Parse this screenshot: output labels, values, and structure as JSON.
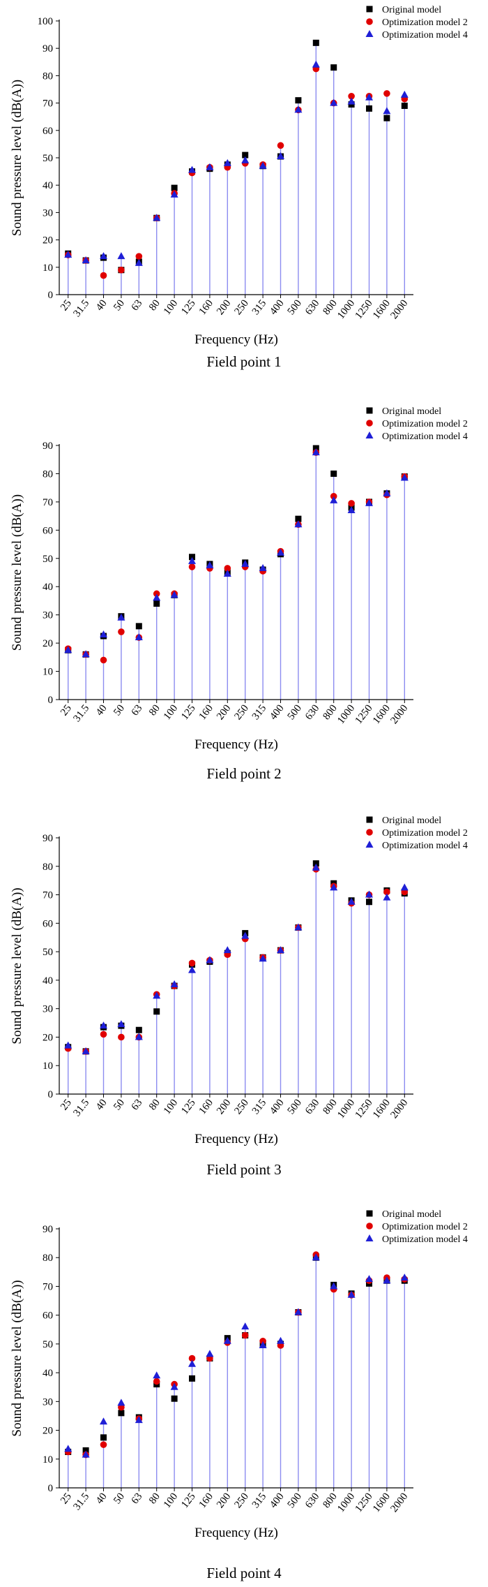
{
  "legend_labels": [
    "Original model",
    "Optimization model 2",
    "Optimization model 4"
  ],
  "colors": {
    "series1": "#000000",
    "series2": "#e00000",
    "series3": "#1f1fd6",
    "stem": "#8c8cf0"
  },
  "chart_data": [
    {
      "type": "scatter",
      "title": "Field point 1",
      "xlabel": "Frequency (Hz)",
      "ylabel": "Sound pressure level (dB(A))",
      "categories": [
        "25",
        "31.5",
        "40",
        "50",
        "63",
        "80",
        "100",
        "125",
        "160",
        "200",
        "250",
        "315",
        "400",
        "500",
        "630",
        "800",
        "1000",
        "1250",
        "1600",
        "2000"
      ],
      "ylim": [
        0,
        100
      ],
      "yticks": [
        0,
        10,
        20,
        30,
        40,
        50,
        60,
        70,
        80,
        90,
        100
      ],
      "series": [
        {
          "name": "Original model",
          "marker": "square",
          "values": [
            15,
            12.5,
            13.5,
            9,
            12,
            28,
            39,
            45,
            46,
            47.5,
            51,
            47,
            50.5,
            71,
            92,
            83,
            69.5,
            68,
            64.5,
            69
          ]
        },
        {
          "name": "Optimization model 2",
          "marker": "circle",
          "values": [
            14.5,
            12.5,
            7,
            9,
            14,
            28,
            37,
            44.5,
            46.5,
            46.5,
            48,
            47.5,
            54.5,
            67.5,
            82.5,
            70,
            72.5,
            72.5,
            73.5,
            71.5
          ]
        },
        {
          "name": "Optimization model 4",
          "marker": "triangle",
          "values": [
            14.5,
            12.5,
            14,
            14,
            11.5,
            28,
            36.5,
            45.5,
            46.5,
            48,
            49,
            47,
            50.5,
            67.5,
            84,
            70,
            70.5,
            72,
            67,
            73
          ]
        }
      ]
    },
    {
      "type": "scatter",
      "title": "Field point 2",
      "xlabel": "Frequency (Hz)",
      "ylabel": "Sound pressure level (dB(A))",
      "categories": [
        "25",
        "31.5",
        "40",
        "50",
        "63",
        "80",
        "100",
        "125",
        "160",
        "200",
        "250",
        "315",
        "400",
        "500",
        "630",
        "800",
        "1000",
        "1250",
        "1600",
        "2000"
      ],
      "ylim": [
        0,
        90
      ],
      "yticks": [
        0,
        10,
        20,
        30,
        40,
        50,
        60,
        70,
        80,
        90
      ],
      "series": [
        {
          "name": "Original model",
          "marker": "square",
          "values": [
            17.5,
            16,
            22.5,
            29.5,
            26,
            34,
            37,
            50.5,
            48,
            45,
            48.5,
            46,
            51.5,
            64,
            89,
            80,
            68,
            70,
            73,
            79
          ]
        },
        {
          "name": "Optimization model 2",
          "marker": "circle",
          "values": [
            18,
            16,
            14,
            24,
            22,
            37.5,
            37.5,
            47,
            46.5,
            46.5,
            47,
            45.5,
            52.5,
            62,
            87.5,
            72,
            69.5,
            70,
            72.5,
            79
          ]
        },
        {
          "name": "Optimization model 4",
          "marker": "triangle",
          "values": [
            17.5,
            16,
            23,
            29,
            22,
            36,
            37,
            49,
            47.5,
            44.5,
            48,
            46.5,
            52,
            62,
            87.5,
            70.5,
            67,
            69.5,
            73,
            78.5
          ]
        }
      ]
    },
    {
      "type": "scatter",
      "title": "Field point 3",
      "xlabel": "Frequency (Hz)",
      "ylabel": "Sound pressure level (dB(A))",
      "categories": [
        "25",
        "31.5",
        "40",
        "50",
        "63",
        "80",
        "100",
        "125",
        "160",
        "200",
        "250",
        "315",
        "400",
        "500",
        "630",
        "800",
        "1000",
        "1250",
        "1600",
        "2000"
      ],
      "ylim": [
        0,
        90
      ],
      "yticks": [
        0,
        10,
        20,
        30,
        40,
        50,
        60,
        70,
        80,
        90
      ],
      "series": [
        {
          "name": "Original model",
          "marker": "square",
          "values": [
            16.5,
            15,
            23.5,
            24,
            22.5,
            29,
            38,
            45.5,
            46.5,
            49.5,
            56.5,
            48,
            50.5,
            58.5,
            81,
            74,
            68,
            67.5,
            71.5,
            70.5
          ]
        },
        {
          "name": "Optimization model 2",
          "marker": "circle",
          "values": [
            16,
            15,
            21,
            20,
            20,
            35,
            38,
            46,
            47,
            49,
            54.5,
            48,
            50.5,
            58.5,
            79,
            73,
            67,
            70,
            71,
            71
          ]
        },
        {
          "name": "Optimization model 4",
          "marker": "triangle",
          "values": [
            17,
            15,
            24,
            24.5,
            20,
            34.5,
            38.5,
            43.5,
            47,
            50.5,
            55.5,
            47.5,
            50.5,
            58.5,
            79.5,
            72.5,
            67.5,
            70,
            69,
            72.5
          ]
        }
      ]
    },
    {
      "type": "scatter",
      "title": "Field point 4",
      "xlabel": "Frequency (Hz)",
      "ylabel": "Sound pressure level (dB(A))",
      "categories": [
        "25",
        "31.5",
        "40",
        "50",
        "63",
        "80",
        "100",
        "125",
        "160",
        "200",
        "250",
        "315",
        "400",
        "500",
        "630",
        "800",
        "1000",
        "1250",
        "1600",
        "2000"
      ],
      "ylim": [
        0,
        90
      ],
      "yticks": [
        0,
        10,
        20,
        30,
        40,
        50,
        60,
        70,
        80,
        90
      ],
      "series": [
        {
          "name": "Original model",
          "marker": "square",
          "values": [
            12.5,
            13,
            17.5,
            26,
            24.5,
            36,
            31,
            38,
            45,
            52,
            53,
            50,
            50,
            61,
            80,
            70.5,
            67.5,
            71,
            72,
            72
          ]
        },
        {
          "name": "Optimization model 2",
          "marker": "circle",
          "values": [
            12.5,
            11.5,
            15,
            28,
            24,
            37,
            36,
            45,
            45,
            50.5,
            53,
            51,
            49.5,
            61,
            81,
            69,
            67,
            72,
            73,
            72.5
          ]
        },
        {
          "name": "Optimization model 4",
          "marker": "triangle",
          "values": [
            13.5,
            11.5,
            23,
            29.5,
            23.5,
            39,
            35,
            43,
            46.5,
            51,
            56,
            49.5,
            51,
            61,
            80,
            70,
            67,
            72.5,
            72,
            73
          ]
        }
      ]
    }
  ]
}
